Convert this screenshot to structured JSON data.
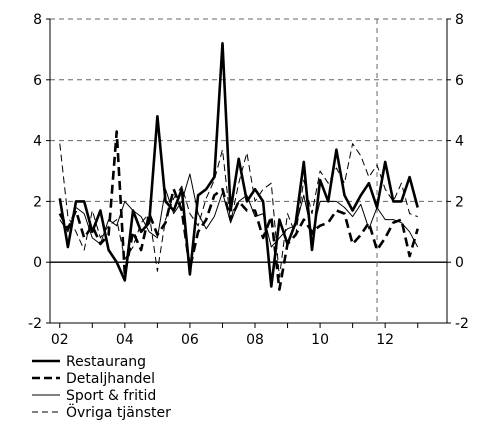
{
  "chart_data": {
    "type": "line",
    "title": "",
    "xlabel": "",
    "ylabel": "",
    "ylim": [
      -2,
      8
    ],
    "xlim": [
      2001.7,
      2013.9
    ],
    "yticks": [
      -2,
      0,
      2,
      4,
      6,
      8
    ],
    "xticks": [
      {
        "label": "02",
        "value": 2002
      },
      {
        "label": "04",
        "value": 2004
      },
      {
        "label": "06",
        "value": 2006
      },
      {
        "label": "08",
        "value": 2008
      },
      {
        "label": "10",
        "value": 2010
      },
      {
        "label": "12",
        "value": 2012
      }
    ],
    "minor_xticks": [
      2003,
      2005,
      2007,
      2009,
      2011,
      2013
    ],
    "grid": "horizontal dashed",
    "reference_lines": [
      {
        "orientation": "vertical",
        "x": 2011.75,
        "style": "dashed"
      }
    ],
    "right_axis_mirrors_left": true,
    "legend_position": "below",
    "series": [
      {
        "name": "Restaurang",
        "style": "thick-solid",
        "x": [
          2002.0,
          2002.25,
          2002.5,
          2002.75,
          2003.0,
          2003.25,
          2003.5,
          2003.75,
          2004.0,
          2004.25,
          2004.5,
          2004.75,
          2005.0,
          2005.25,
          2005.5,
          2005.75,
          2006.0,
          2006.25,
          2006.5,
          2006.75,
          2007.0,
          2007.25,
          2007.5,
          2007.75,
          2008.0,
          2008.25,
          2008.5,
          2008.75,
          2009.0,
          2009.25,
          2009.5,
          2009.75,
          2010.0,
          2010.25,
          2010.5,
          2010.75,
          2011.0,
          2011.25,
          2011.5,
          2011.75,
          2012.0,
          2012.25,
          2012.5,
          2012.75,
          2013.0
        ],
        "values": [
          2.1,
          0.5,
          2.0,
          2.0,
          1.0,
          1.7,
          0.4,
          0.0,
          -0.6,
          1.7,
          1.0,
          1.3,
          4.8,
          2.0,
          1.7,
          2.4,
          -0.4,
          2.2,
          2.4,
          2.8,
          7.2,
          1.7,
          3.4,
          2.0,
          2.4,
          2.0,
          -0.8,
          1.4,
          0.6,
          1.3,
          3.3,
          0.4,
          2.7,
          2.0,
          3.7,
          2.2,
          1.7,
          2.2,
          2.6,
          1.8,
          3.3,
          2.0,
          2.0,
          2.8,
          1.8
        ]
      },
      {
        "name": "Detaljhandel",
        "style": "thick-dashed",
        "x": [
          2002.0,
          2002.25,
          2002.5,
          2002.75,
          2003.0,
          2003.25,
          2003.5,
          2003.75,
          2004.0,
          2004.25,
          2004.5,
          2004.75,
          2005.0,
          2005.25,
          2005.5,
          2005.75,
          2006.0,
          2006.25,
          2006.5,
          2006.75,
          2007.0,
          2007.25,
          2007.5,
          2007.75,
          2008.0,
          2008.25,
          2008.5,
          2008.75,
          2009.0,
          2009.25,
          2009.5,
          2009.75,
          2010.0,
          2010.25,
          2010.5,
          2010.75,
          2011.0,
          2011.25,
          2011.5,
          2011.75,
          2012.0,
          2012.25,
          2012.5,
          2012.75,
          2013.0
        ],
        "values": [
          1.6,
          1.1,
          1.7,
          0.8,
          1.2,
          0.6,
          0.9,
          4.3,
          -0.4,
          1.0,
          0.4,
          1.6,
          0.9,
          1.3,
          2.4,
          1.7,
          -0.2,
          1.0,
          1.4,
          2.2,
          2.4,
          1.4,
          2.0,
          1.7,
          1.7,
          0.8,
          1.5,
          -0.9,
          0.6,
          0.9,
          1.4,
          1.0,
          1.2,
          1.3,
          1.7,
          1.6,
          0.6,
          0.9,
          1.3,
          0.4,
          0.8,
          1.3,
          1.4,
          0.2,
          1.1
        ]
      },
      {
        "name": "Sport & fritid",
        "style": "thin-solid",
        "x": [
          2002.0,
          2002.25,
          2002.5,
          2002.75,
          2003.0,
          2003.25,
          2003.5,
          2003.75,
          2004.0,
          2004.25,
          2004.5,
          2004.75,
          2005.0,
          2005.25,
          2005.5,
          2005.75,
          2006.0,
          2006.25,
          2006.5,
          2006.75,
          2007.0,
          2007.25,
          2007.5,
          2007.75,
          2008.0,
          2008.25,
          2008.5,
          2008.75,
          2009.0,
          2009.25,
          2009.5,
          2009.75,
          2010.0,
          2010.25,
          2010.5,
          2010.75,
          2011.0,
          2011.25,
          2011.5,
          2011.75,
          2012.0,
          2012.25,
          2012.5,
          2012.75,
          2013.0
        ],
        "values": [
          1.4,
          1.0,
          1.8,
          1.6,
          0.8,
          0.6,
          1.4,
          1.2,
          2.0,
          1.7,
          1.5,
          1.0,
          0.8,
          2.4,
          1.6,
          2.0,
          2.9,
          1.6,
          1.1,
          1.5,
          2.3,
          1.3,
          2.0,
          2.2,
          1.5,
          1.6,
          0.5,
          0.8,
          1.1,
          1.2,
          2.2,
          0.9,
          2.0,
          2.0,
          2.0,
          1.8,
          1.5,
          1.9,
          1.1,
          1.8,
          1.4,
          1.4,
          1.3,
          1.0,
          0.5
        ]
      },
      {
        "name": "Övriga tjänster",
        "style": "thin-dashed",
        "x": [
          2002.0,
          2002.25,
          2002.5,
          2002.75,
          2003.0,
          2003.25,
          2003.5,
          2003.75,
          2004.0,
          2004.25,
          2004.5,
          2004.75,
          2005.0,
          2005.25,
          2005.5,
          2005.75,
          2006.0,
          2006.25,
          2006.5,
          2006.75,
          2007.0,
          2007.25,
          2007.5,
          2007.75,
          2008.0,
          2008.25,
          2008.5,
          2008.75,
          2009.0,
          2009.25,
          2009.5,
          2009.75,
          2010.0,
          2010.25,
          2010.5,
          2010.75,
          2011.0,
          2011.25,
          2011.5,
          2011.75,
          2012.0,
          2012.25,
          2012.5,
          2012.75,
          2013.0
        ],
        "values": [
          3.9,
          1.5,
          1.0,
          0.4,
          1.7,
          0.8,
          1.2,
          1.4,
          0.1,
          0.5,
          1.3,
          1.6,
          -0.3,
          1.4,
          2.1,
          2.5,
          1.6,
          1.2,
          2.1,
          2.7,
          3.7,
          1.3,
          2.6,
          3.6,
          2.0,
          2.4,
          2.6,
          -0.5,
          1.6,
          0.9,
          2.7,
          1.6,
          3.0,
          2.6,
          3.1,
          2.6,
          3.9,
          3.5,
          2.8,
          3.2,
          2.4,
          2.0,
          2.6,
          1.6,
          1.5
        ]
      }
    ]
  }
}
